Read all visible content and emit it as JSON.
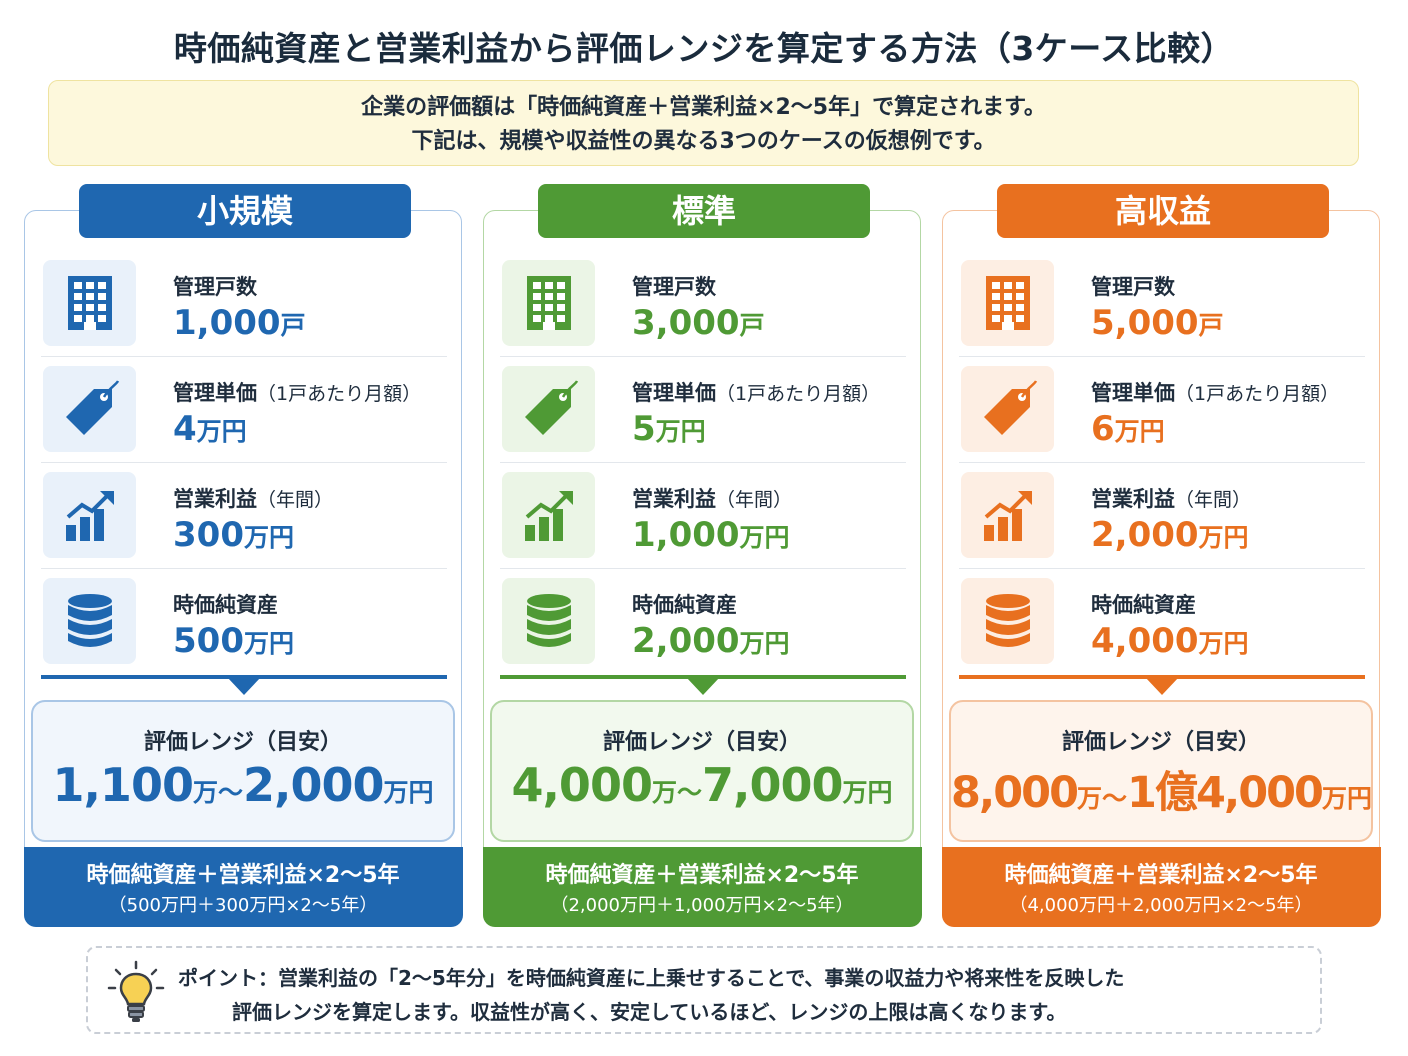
{
  "title": "時価純資産と営業利益から評価レンジを算定する方法（3ケース比較）",
  "intro": {
    "line1": "企業の評価額は「時価純資産＋営業利益×2〜5年」で算定されます。",
    "line2": "下記は、規模や収益性の異なる3つのケースの仮想例です。"
  },
  "colors": {
    "blue": "#1f67b0",
    "green": "#4f9a35",
    "orange": "#e8701f"
  },
  "cases": [
    {
      "name": "小規模",
      "units": {
        "label": "管理戸数",
        "value": "1,000",
        "unit": "戸",
        "icon": "building-icon"
      },
      "price": {
        "label": "管理単価",
        "sub": "（1戸あたり月額）",
        "value": "4",
        "unit": "万円",
        "icon": "price-tag-icon"
      },
      "profit": {
        "label": "営業利益",
        "sub": "（年間）",
        "value": "300",
        "unit": "万円",
        "icon": "bar-chart-growth-icon"
      },
      "assets": {
        "label": "時価純資産",
        "value": "500",
        "unit": "万円",
        "icon": "database-icon"
      },
      "range_label": "評価レンジ（目安）",
      "range": {
        "low": "1,100",
        "low_unit": "万",
        "sep": "〜",
        "high": "2,000",
        "high_unit": "万円"
      },
      "formula": "時価純資産＋営業利益×2〜5年",
      "formula_detail": "（500万円＋300万円×2〜5年）"
    },
    {
      "name": "標準",
      "units": {
        "label": "管理戸数",
        "value": "3,000",
        "unit": "戸",
        "icon": "building-icon"
      },
      "price": {
        "label": "管理単価",
        "sub": "（1戸あたり月額）",
        "value": "5",
        "unit": "万円",
        "icon": "price-tag-icon"
      },
      "profit": {
        "label": "営業利益",
        "sub": "（年間）",
        "value": "1,000",
        "unit": "万円",
        "icon": "bar-chart-growth-icon"
      },
      "assets": {
        "label": "時価純資産",
        "value": "2,000",
        "unit": "万円",
        "icon": "database-icon"
      },
      "range_label": "評価レンジ（目安）",
      "range": {
        "low": "4,000",
        "low_unit": "万",
        "sep": "〜",
        "high": "7,000",
        "high_unit": "万円"
      },
      "formula": "時価純資産＋営業利益×2〜5年",
      "formula_detail": "（2,000万円＋1,000万円×2〜5年）"
    },
    {
      "name": "高収益",
      "units": {
        "label": "管理戸数",
        "value": "5,000",
        "unit": "戸",
        "icon": "building-icon"
      },
      "price": {
        "label": "管理単価",
        "sub": "（1戸あたり月額）",
        "value": "6",
        "unit": "万円",
        "icon": "price-tag-icon"
      },
      "profit": {
        "label": "営業利益",
        "sub": "（年間）",
        "value": "2,000",
        "unit": "万円",
        "icon": "bar-chart-growth-icon"
      },
      "assets": {
        "label": "時価純資産",
        "value": "4,000",
        "unit": "万円",
        "icon": "database-icon"
      },
      "range_label": "評価レンジ（目安）",
      "range": {
        "low": "8,000",
        "low_unit": "万",
        "sep": "〜",
        "high": "1億4,000",
        "high_unit": "万円"
      },
      "formula": "時価純資産＋営業利益×2〜5年",
      "formula_detail": "（4,000万円＋2,000万円×2〜5年）"
    }
  ],
  "note": {
    "icon": "lightbulb-icon",
    "line1": "ポイント：営業利益の「2〜5年分」を時価純資産に上乗せすることで、事業の収益力や将来性を反映した",
    "line2": "評価レンジを算定します。収益性が高く、安定しているほど、レンジの上限は高くなります。"
  }
}
